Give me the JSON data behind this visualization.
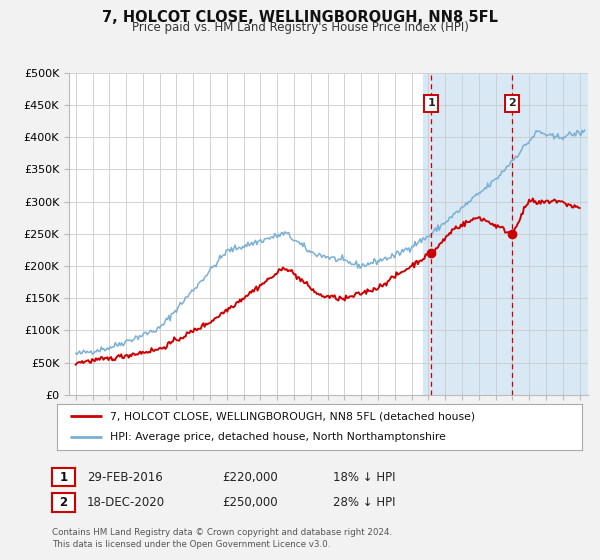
{
  "title": "7, HOLCOT CLOSE, WELLINGBOROUGH, NN8 5FL",
  "subtitle": "Price paid vs. HM Land Registry's House Price Index (HPI)",
  "background_color": "#f2f2f2",
  "plot_bg_color": "#ffffff",
  "hpi_color": "#7bafd4",
  "price_color": "#cc0000",
  "ylabel_ticks": [
    "£0",
    "£50K",
    "£100K",
    "£150K",
    "£200K",
    "£250K",
    "£300K",
    "£350K",
    "£400K",
    "£450K",
    "£500K"
  ],
  "ytick_values": [
    0,
    50000,
    100000,
    150000,
    200000,
    250000,
    300000,
    350000,
    400000,
    450000,
    500000
  ],
  "xlim_start": 1994.6,
  "xlim_end": 2025.5,
  "ylim_min": 0,
  "ylim_max": 500000,
  "xtick_years": [
    1995,
    1996,
    1997,
    1998,
    1999,
    2000,
    2001,
    2002,
    2003,
    2004,
    2005,
    2006,
    2007,
    2008,
    2009,
    2010,
    2011,
    2012,
    2013,
    2014,
    2015,
    2016,
    2017,
    2018,
    2019,
    2020,
    2021,
    2022,
    2023,
    2024,
    2025
  ],
  "event1_x": 2016.17,
  "event1_label": "1",
  "event1_price": 220000,
  "event2_x": 2020.96,
  "event2_label": "2",
  "event2_price": 250000,
  "legend_label1": "7, HOLCOT CLOSE, WELLINGBOROUGH, NN8 5FL (detached house)",
  "legend_label2": "HPI: Average price, detached house, North Northamptonshire",
  "table_row1": [
    "1",
    "29-FEB-2016",
    "£220,000",
    "18% ↓ HPI"
  ],
  "table_row2": [
    "2",
    "18-DEC-2020",
    "£250,000",
    "28% ↓ HPI"
  ],
  "footer": "Contains HM Land Registry data © Crown copyright and database right 2024.\nThis data is licensed under the Open Government Licence v3.0.",
  "shaded_region_start": 2015.7,
  "shaded_region_end": 2025.5,
  "shade_color": "#d8e8f5"
}
